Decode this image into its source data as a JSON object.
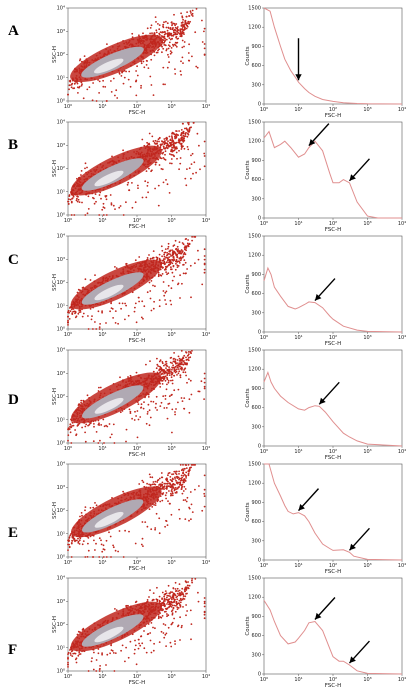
{
  "panels": [
    {
      "label": "A"
    },
    {
      "label": "B"
    },
    {
      "label": "C"
    },
    {
      "label": "D"
    },
    {
      "label": "E"
    },
    {
      "label": "F"
    }
  ],
  "chart_data": [
    {
      "type": "scatter",
      "role": "density-dot-plot",
      "xlabel": "FSC-H",
      "ylabel": "SSC-H",
      "x_scale": "log",
      "y_scale": "log",
      "xlim": [
        1,
        10000
      ],
      "ylim": [
        1,
        10000
      ],
      "x_ticks": [
        "10⁰",
        "10¹",
        "10²",
        "10³",
        "10⁴"
      ],
      "y_ticks": [
        "10⁰",
        "10¹",
        "10²",
        "10³",
        "10⁴"
      ],
      "colors": {
        "points": "#c0271e",
        "core": "#e8e6ea",
        "mid": "#b0a9b3"
      }
    },
    {
      "type": "line",
      "role": "histogram",
      "xlabel": "FSC-H",
      "ylabel": "Counts",
      "x_scale": "log",
      "xlim": [
        1,
        10000
      ],
      "ylim": [
        0,
        1500
      ],
      "x_ticks": [
        "10⁰",
        "10¹",
        "10²",
        "10³",
        "10⁴"
      ],
      "y_ticks": [
        "0",
        "300",
        "600",
        "900",
        "1200",
        "1500"
      ],
      "line_color": "#e08f8f",
      "series": [
        {
          "panel": "A",
          "x": [
            1,
            1.5,
            2,
            3,
            4,
            6,
            8,
            10,
            15,
            20,
            30,
            50,
            100,
            200,
            500,
            1000,
            10000
          ],
          "values": [
            1500,
            1450,
            1200,
            900,
            700,
            520,
            420,
            340,
            240,
            180,
            120,
            70,
            40,
            20,
            8,
            3,
            0
          ],
          "arrows_at": [
            10
          ]
        },
        {
          "panel": "B",
          "x": [
            1,
            1.4,
            2,
            3,
            4,
            6,
            10,
            15,
            20,
            30,
            50,
            80,
            100,
            150,
            200,
            300,
            500,
            1000,
            2000,
            10000
          ],
          "values": [
            1250,
            1350,
            1100,
            1150,
            1200,
            1100,
            950,
            1000,
            1100,
            1200,
            1050,
            700,
            550,
            550,
            600,
            550,
            250,
            30,
            0,
            0
          ],
          "arrows_at": [
            20,
            300
          ]
        },
        {
          "panel": "C",
          "x": [
            1,
            1.3,
            1.6,
            2,
            3,
            5,
            8,
            10,
            15,
            20,
            30,
            50,
            80,
            100,
            200,
            500,
            1000,
            10000
          ],
          "values": [
            800,
            1000,
            900,
            700,
            560,
            400,
            360,
            380,
            430,
            470,
            460,
            380,
            250,
            200,
            90,
            30,
            10,
            0
          ],
          "arrows_at": [
            30
          ]
        },
        {
          "panel": "D",
          "x": [
            1,
            1.3,
            1.6,
            2,
            3,
            5,
            10,
            15,
            20,
            30,
            40,
            60,
            100,
            200,
            300,
            500,
            1000,
            10000
          ],
          "values": [
            1000,
            1150,
            1000,
            900,
            780,
            680,
            580,
            560,
            600,
            630,
            620,
            530,
            380,
            200,
            140,
            80,
            30,
            0
          ],
          "arrows_at": [
            40
          ]
        },
        {
          "panel": "E",
          "x": [
            1,
            1.4,
            2,
            3,
            4,
            5,
            7,
            10,
            15,
            20,
            30,
            50,
            80,
            100,
            200,
            300,
            400,
            1000,
            10000
          ],
          "values": [
            1500,
            1500,
            1200,
            1000,
            850,
            760,
            720,
            740,
            690,
            600,
            420,
            250,
            180,
            150,
            160,
            120,
            60,
            10,
            0
          ],
          "arrows_at": [
            10,
            300
          ]
        },
        {
          "panel": "F",
          "x": [
            1,
            1.5,
            2,
            3,
            5,
            8,
            10,
            15,
            20,
            30,
            50,
            80,
            100,
            150,
            200,
            300,
            500,
            1000,
            10000
          ],
          "values": [
            1150,
            1000,
            820,
            600,
            470,
            500,
            560,
            680,
            800,
            820,
            680,
            400,
            270,
            200,
            200,
            140,
            50,
            10,
            0
          ],
          "arrows_at": [
            30,
            300
          ]
        }
      ]
    }
  ]
}
